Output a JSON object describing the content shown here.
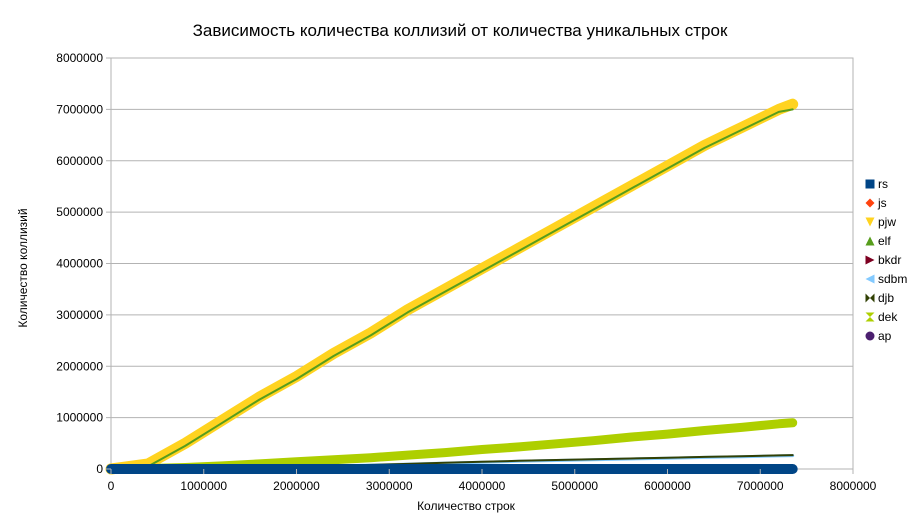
{
  "chart_data": {
    "type": "line",
    "title": "Зависимость количества коллизий от количества уникальных строк",
    "xlabel": "Количество строк",
    "ylabel": "Количество коллизий",
    "xlim": [
      0,
      8000000
    ],
    "ylim": [
      0,
      8000000
    ],
    "xticks": [
      "0",
      "1000000",
      "2000000",
      "3000000",
      "4000000",
      "5000000",
      "6000000",
      "7000000",
      "8000000"
    ],
    "yticks": [
      "0",
      "1000000",
      "2000000",
      "3000000",
      "4000000",
      "5000000",
      "6000000",
      "7000000",
      "8000000"
    ],
    "grid": "horizontal",
    "legend_position": "right",
    "x": [
      0,
      400000,
      800000,
      1200000,
      1600000,
      2000000,
      2400000,
      2800000,
      3200000,
      3600000,
      4000000,
      4400000,
      4800000,
      5200000,
      5600000,
      6000000,
      6400000,
      6800000,
      7200000,
      7350000
    ],
    "series": [
      {
        "name": "rs",
        "color": "#004586",
        "marker": "square",
        "values": [
          0,
          0,
          0,
          0,
          0,
          0,
          0,
          0,
          0,
          0,
          0,
          0,
          0,
          0,
          0,
          0,
          0,
          0,
          0,
          0
        ]
      },
      {
        "name": "js",
        "color": "#ff420e",
        "marker": "diamond",
        "values": [
          0,
          0,
          0,
          0,
          0,
          0,
          0,
          0,
          0,
          0,
          0,
          0,
          0,
          0,
          0,
          0,
          0,
          0,
          0,
          0
        ]
      },
      {
        "name": "pjw",
        "color": "#ffd320",
        "marker": "triangle-down",
        "values": [
          0,
          100000,
          500000,
          950000,
          1400000,
          1800000,
          2250000,
          2650000,
          3100000,
          3500000,
          3900000,
          4300000,
          4700000,
          5100000,
          5500000,
          5900000,
          6300000,
          6650000,
          7000000,
          7100000
        ]
      },
      {
        "name": "elf",
        "color": "#579d1c",
        "marker": "triangle-up",
        "values": [
          0,
          50000,
          450000,
          900000,
          1350000,
          1750000,
          2200000,
          2600000,
          3050000,
          3450000,
          3850000,
          4250000,
          4650000,
          5050000,
          5450000,
          5850000,
          6250000,
          6600000,
          6950000,
          7000000
        ]
      },
      {
        "name": "bkdr",
        "color": "#7e0021",
        "marker": "triangle-right",
        "values": [
          0,
          0,
          0,
          0,
          0,
          0,
          0,
          0,
          0,
          0,
          0,
          0,
          0,
          0,
          0,
          0,
          0,
          0,
          0,
          0
        ]
      },
      {
        "name": "sdbm",
        "color": "#83caff",
        "marker": "triangle-left",
        "values": [
          0,
          5000,
          10000,
          20000,
          30000,
          45000,
          60000,
          75000,
          95000,
          115000,
          130000,
          150000,
          165000,
          180000,
          195000,
          210000,
          225000,
          240000,
          255000,
          260000
        ]
      },
      {
        "name": "djb",
        "color": "#314004",
        "marker": "bowtie",
        "values": [
          0,
          5000,
          12000,
          22000,
          35000,
          50000,
          65000,
          80000,
          100000,
          120000,
          140000,
          160000,
          175000,
          190000,
          205000,
          220000,
          235000,
          250000,
          265000,
          270000
        ]
      },
      {
        "name": "dek",
        "color": "#aecf00",
        "marker": "hourglass",
        "values": [
          0,
          10000,
          30000,
          60000,
          100000,
          140000,
          180000,
          220000,
          270000,
          320000,
          380000,
          430000,
          490000,
          550000,
          620000,
          680000,
          750000,
          810000,
          880000,
          900000
        ]
      },
      {
        "name": "ap",
        "color": "#4b1f6f",
        "marker": "circle",
        "values": [
          0,
          0,
          0,
          0,
          0,
          0,
          0,
          0,
          0,
          0,
          0,
          0,
          0,
          0,
          0,
          0,
          0,
          0,
          0,
          0
        ]
      }
    ]
  }
}
